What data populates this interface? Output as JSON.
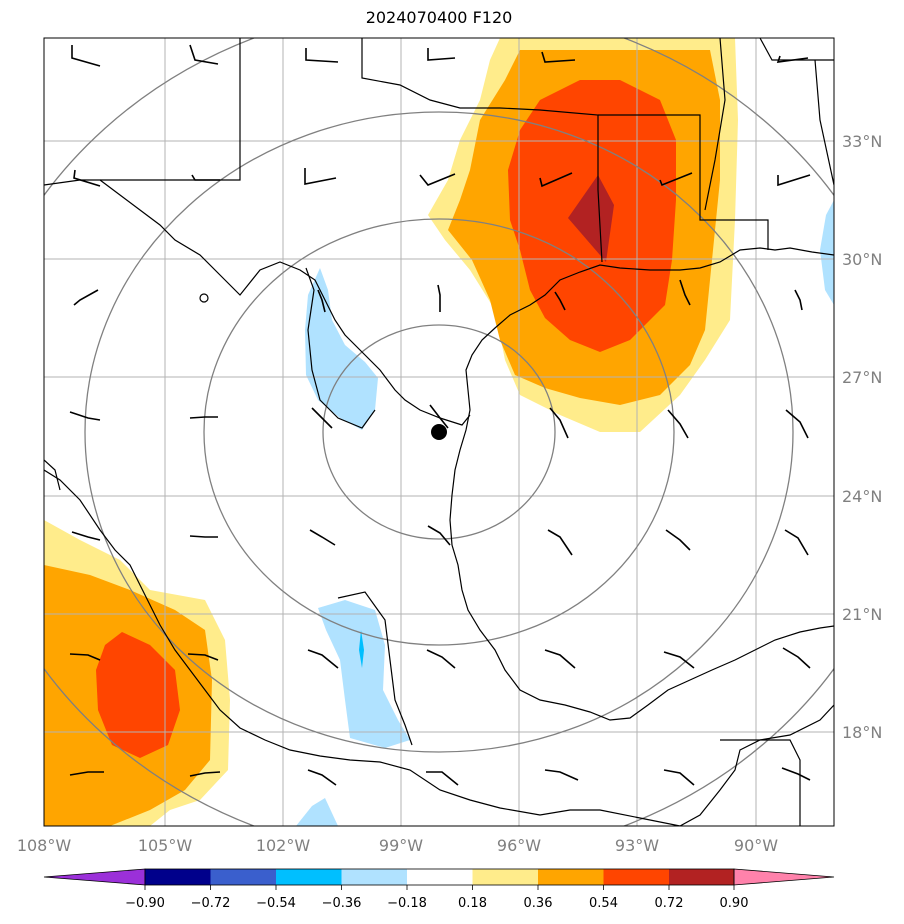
{
  "title": "2024070400 F120",
  "x_ticks": [
    "108°W",
    "105°W",
    "102°W",
    "99°W",
    "96°W",
    "93°W",
    "90°W"
  ],
  "y_ticks": [
    "33°N",
    "30°N",
    "27°N",
    "24°N",
    "21°N",
    "18°N"
  ],
  "colorbar": {
    "labels": [
      "−0.90",
      "−0.72",
      "−0.54",
      "−0.36",
      "−0.18",
      "0.18",
      "0.36",
      "0.54",
      "0.72",
      "0.90"
    ],
    "colors": [
      "#9b30d9",
      "#00008b",
      "#3a5fcd",
      "#00bfff",
      "#b0e2ff",
      "#ffffff",
      "#ffec8b",
      "#ffa500",
      "#ff4500",
      "#b22222",
      "#ff82ab"
    ]
  },
  "map": {
    "extent_lon": [
      -108,
      -88
    ],
    "extent_lat": [
      15.3,
      35.3
    ],
    "center_marker": {
      "lon": -98,
      "lat": 25.6
    },
    "fill_colors": {
      "light_yellow": "#ffec8b",
      "orange": "#ffa500",
      "red_orange": "#ff4500",
      "dark_red": "#b22222",
      "light_blue": "#b0e2ff",
      "cyan": "#00bfff"
    }
  }
}
